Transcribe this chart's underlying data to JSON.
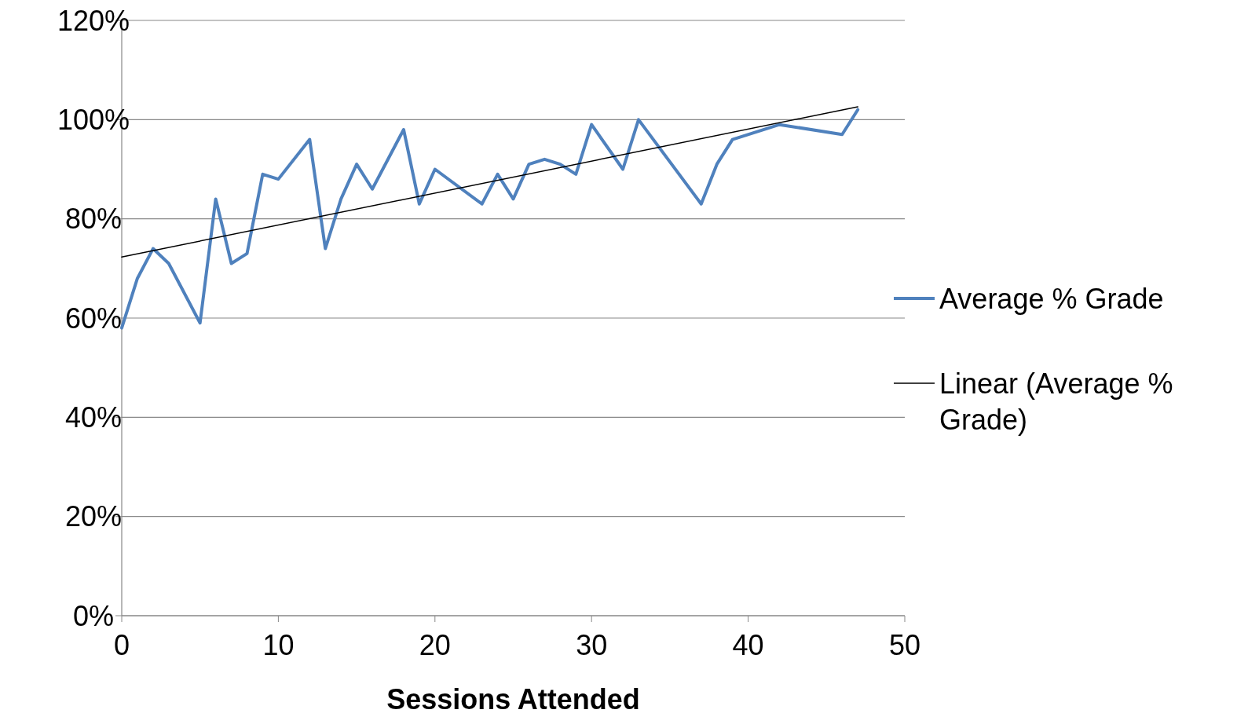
{
  "chart_data": {
    "type": "line",
    "xlabel": "Sessions Attended",
    "xlim": [
      0,
      50
    ],
    "xticks": [
      0,
      10,
      20,
      30,
      40,
      50
    ],
    "ylim": [
      0,
      120
    ],
    "yticks": [
      {
        "value": 0,
        "label": "0%"
      },
      {
        "value": 20,
        "label": "20%"
      },
      {
        "value": 40,
        "label": "40%"
      },
      {
        "value": 60,
        "label": "60%"
      },
      {
        "value": 80,
        "label": "80%"
      },
      {
        "value": 100,
        "label": "100%"
      },
      {
        "value": 120,
        "label": "120%"
      }
    ],
    "grid": "y",
    "legend": "right",
    "marker": "none",
    "series": [
      {
        "name": "Average % Grade",
        "color": "#4f81bd",
        "x": [
          0,
          1,
          2,
          3,
          5,
          6,
          7,
          8,
          9,
          10,
          12,
          13,
          14,
          15,
          16,
          18,
          19,
          20,
          23,
          24,
          25,
          26,
          27,
          28,
          29,
          30,
          32,
          33,
          37,
          38,
          39,
          42,
          46,
          47
        ],
        "values": [
          58,
          68,
          74,
          71,
          59,
          84,
          71,
          73,
          89,
          88,
          96,
          74,
          84,
          91,
          86,
          98,
          83,
          90,
          83,
          89,
          84,
          91,
          92,
          91,
          89,
          99,
          90,
          100,
          83,
          91,
          96,
          99,
          97,
          102
        ]
      },
      {
        "name": "Linear (Average % Grade)",
        "color": "#000000",
        "type": "line",
        "x": [
          0,
          47
        ],
        "values": [
          72.3,
          102.6
        ]
      }
    ]
  }
}
